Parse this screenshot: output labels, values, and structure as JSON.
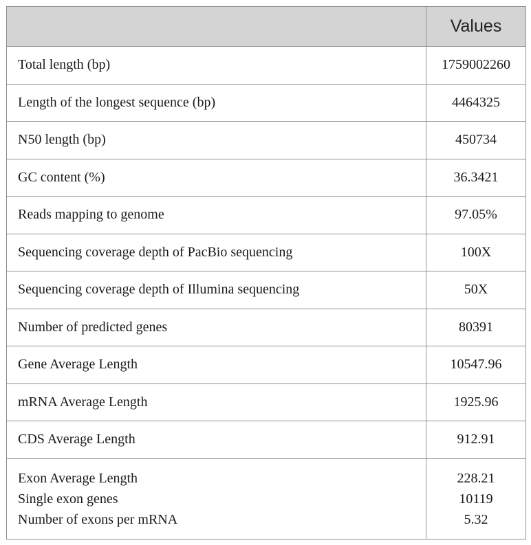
{
  "header": {
    "label_col": "",
    "value_col": "Values"
  },
  "rows": [
    {
      "label": "Total length (bp)",
      "value": "1759002260"
    },
    {
      "label": "Length of the longest sequence (bp)",
      "value": "4464325"
    },
    {
      "label": "N50 length (bp)",
      "value": "450734"
    },
    {
      "label": "GC content (%)",
      "value": "36.3421"
    },
    {
      "label": "Reads mapping to genome",
      "value": "97.05%"
    },
    {
      "label": "Sequencing coverage depth of PacBio sequencing",
      "value": "100X"
    },
    {
      "label": "Sequencing coverage depth of Illumina sequencing",
      "value": "50X"
    },
    {
      "label": "Number of predicted genes",
      "value": "80391"
    },
    {
      "label": "Gene Average Length",
      "value": "10547.96"
    },
    {
      "label": "mRNA Average Length",
      "value": "1925.96"
    },
    {
      "label": "CDS Average Length",
      "value": "912.91"
    }
  ],
  "last_row": {
    "labels": [
      "Exon Average Length",
      "Single exon genes",
      "Number of exons per mRNA"
    ],
    "values": [
      "228.21",
      "10119",
      "5.32"
    ]
  }
}
